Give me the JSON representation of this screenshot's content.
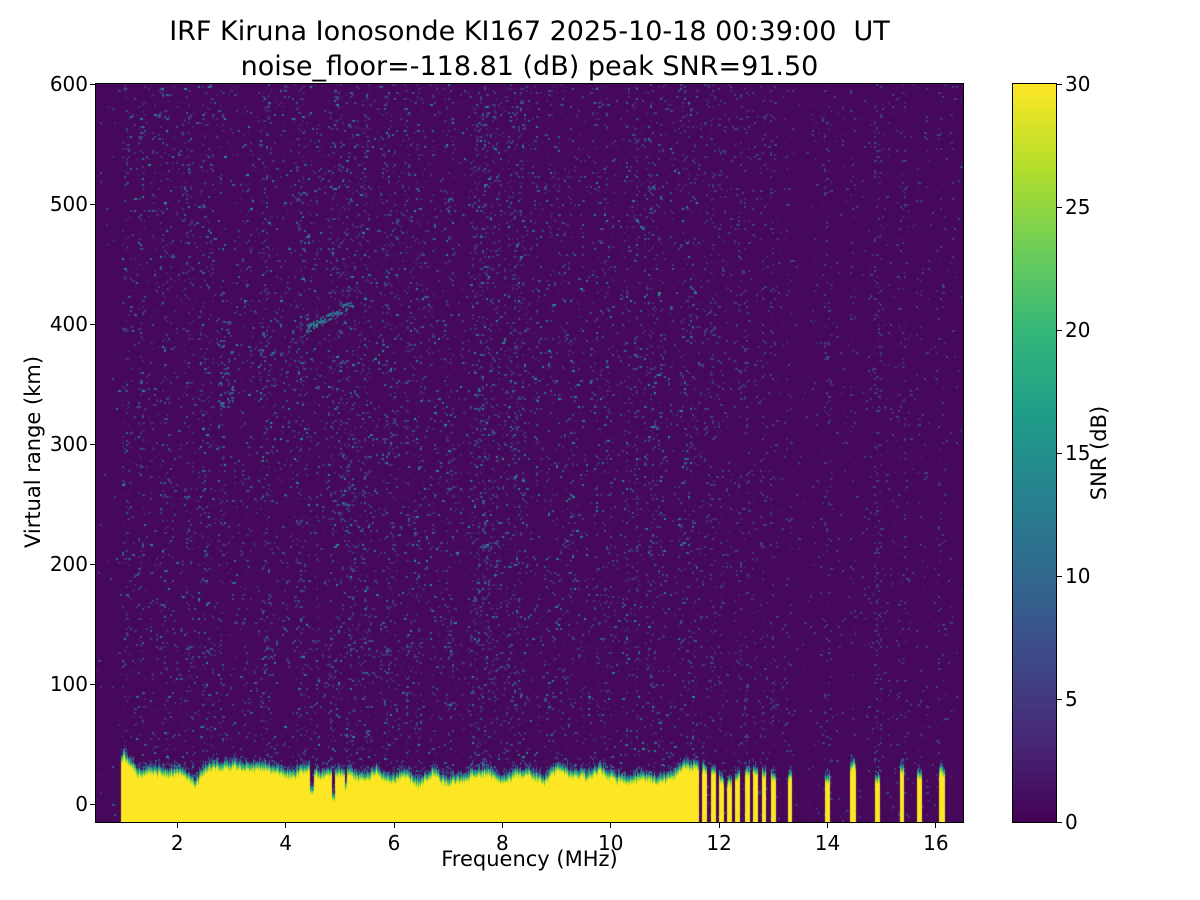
{
  "chart_data": {
    "type": "heatmap",
    "title": "IRF Kiruna Ionosonde KI167 2025-10-18 00:39:00  UT",
    "subtitle": "noise_floor=-118.81 (dB) peak SNR=91.50",
    "station": "KI167",
    "timestamp_ut": "2025-10-18 00:39:00",
    "noise_floor_db": -118.81,
    "peak_snr_db": 91.5,
    "xlabel": "Frequency (MHz)",
    "ylabel": "Virtual range (km)",
    "xlim": [
      0.5,
      16.5
    ],
    "ylim": [
      -15,
      600
    ],
    "xticks": [
      2,
      4,
      6,
      8,
      10,
      12,
      14,
      16
    ],
    "yticks": [
      0,
      100,
      200,
      300,
      400,
      500,
      600
    ],
    "grid": false,
    "colorbar": {
      "label": "SNR (dB)",
      "min": 0,
      "max": 30,
      "ticks": [
        0,
        5,
        10,
        15,
        20,
        25,
        30
      ],
      "colormap": "viridis",
      "stops": [
        "#440154",
        "#482878",
        "#3e4989",
        "#31688e",
        "#26828e",
        "#1f9e89",
        "#35b779",
        "#6ece58",
        "#b5de2b",
        "#fde725"
      ]
    },
    "features": {
      "background_snr_db": 0.6,
      "speckle_noise": [
        {
          "freq_mhz": [
            0.98,
            11.65
          ],
          "range_km": [
            -15,
            600
          ],
          "density": 0.11,
          "snr_db": [
            1,
            15
          ]
        },
        {
          "freq_mhz": [
            11.65,
            16.45
          ],
          "range_km": [
            -15,
            600
          ],
          "density": 0.025,
          "snr_db": [
            1,
            6
          ]
        }
      ],
      "weak_echoes": [
        {
          "freq_mhz": [
            2.78,
            3.02
          ],
          "range_km": [
            330,
            405
          ],
          "count": 45,
          "snr_db": [
            5,
            12
          ],
          "diagonal": false
        },
        {
          "freq_mhz": [
            4.35,
            5.25
          ],
          "range_km": [
            396,
            418
          ],
          "count": 60,
          "snr_db": [
            7,
            16
          ],
          "diagonal": true
        },
        {
          "freq_mhz": [
            3.3,
            4.7
          ],
          "range_km": [
            345,
            400
          ],
          "count": 40,
          "snr_db": [
            4,
            9
          ],
          "diagonal": false
        }
      ],
      "ground_signal": {
        "snr_db": 30,
        "top_range_km_mean": 30,
        "top_range_km_variation": 12,
        "continuous_freq_mhz": [
          0.97,
          11.62
        ],
        "stripe_freq_mhz": [
          [
            11.68,
            11.78
          ],
          [
            11.85,
            11.94
          ],
          [
            12.0,
            12.09
          ],
          [
            12.15,
            12.23
          ],
          [
            12.29,
            12.39
          ],
          [
            12.47,
            12.56
          ],
          [
            12.63,
            12.71
          ],
          [
            12.79,
            12.87
          ],
          [
            12.95,
            13.05
          ],
          [
            13.27,
            13.35
          ],
          [
            13.95,
            14.05
          ],
          [
            14.42,
            14.52
          ],
          [
            14.88,
            14.97
          ],
          [
            15.33,
            15.42
          ],
          [
            15.65,
            15.74
          ],
          [
            16.05,
            16.16
          ]
        ]
      }
    }
  }
}
